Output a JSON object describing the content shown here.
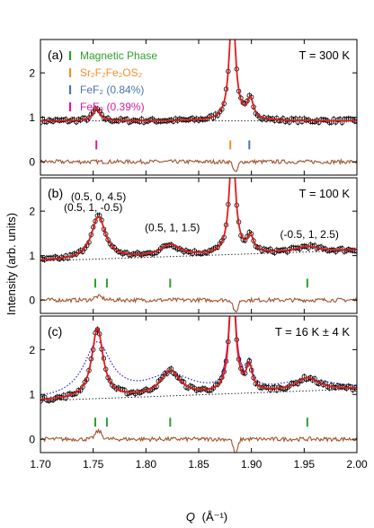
{
  "chart_data": {
    "type": "scatter",
    "xlabel_prefix": "Q",
    "xlabel_unit": "(Å⁻¹)",
    "ylabel": "Intensity (arb. units)",
    "xlim": [
      1.7,
      2.0
    ],
    "xticks": [
      "1.70",
      "1.75",
      "1.80",
      "1.85",
      "1.90",
      "1.95",
      "2.00"
    ],
    "yticks": [
      "0",
      "1",
      "2"
    ],
    "colors": {
      "data": "#000000",
      "fit": "#e31a1c",
      "residual": "#a0522d",
      "baseline": "#000000",
      "magnetic": "#2ca02c",
      "sr2f2fe2os2": "#f28e2b",
      "fef2": "#4c72b0",
      "fef3": "#d81b9c",
      "alt_fit_dotted": "#2323d6",
      "alt_fit_solid": "#a020a0"
    },
    "legend": [
      {
        "key": "magnetic",
        "label": "Magnetic Phase"
      },
      {
        "key": "sr2f2fe2os2",
        "label": "Sr₂F₂Fe₂OS₂"
      },
      {
        "key": "fef2",
        "label": "FeF₂ (0.84%)"
      },
      {
        "key": "fef3",
        "label": "FeF₃ (0.39%)"
      }
    ],
    "panels": [
      {
        "label": "(a)",
        "temperature": "T = 300 K",
        "ylim": [
          -0.3,
          2.75
        ],
        "baseline": [
          1.7,
          0.92,
          2.0,
          0.92
        ],
        "peaks": [
          {
            "c": 1.753,
            "h": 0.28,
            "w": 0.004
          },
          {
            "c": 1.882,
            "h": 2.6,
            "w": 0.0035
          },
          {
            "c": 1.899,
            "h": 0.45,
            "w": 0.0035
          }
        ],
        "residual_offset": 0.0,
        "residual_features": [
          {
            "c": 1.885,
            "a": -0.25,
            "w": 0.002
          }
        ],
        "ticks": [
          {
            "x": 1.753,
            "phase": "fef3"
          },
          {
            "x": 1.88,
            "phase": "sr2f2fe2os2"
          },
          {
            "x": 1.898,
            "phase": "fef2"
          }
        ],
        "annotations": [],
        "alt_fits": false
      },
      {
        "label": "(b)",
        "temperature": "T = 100 K",
        "ylim": [
          -0.3,
          2.75
        ],
        "baseline": [
          1.7,
          0.88,
          2.0,
          1.12
        ],
        "peaks": [
          {
            "c": 1.755,
            "h": 0.95,
            "w": 0.008
          },
          {
            "c": 1.823,
            "h": 0.25,
            "w": 0.011
          },
          {
            "c": 1.882,
            "h": 2.5,
            "w": 0.0035
          },
          {
            "c": 1.899,
            "h": 0.35,
            "w": 0.0035
          },
          {
            "c": 1.953,
            "h": 0.12,
            "w": 0.012
          }
        ],
        "residual_offset": 0.0,
        "residual_features": [
          {
            "c": 1.885,
            "a": -0.3,
            "w": 0.002
          },
          {
            "c": 1.755,
            "a": 0.08,
            "w": 0.004
          }
        ],
        "ticks": [
          {
            "x": 1.752,
            "phase": "magnetic"
          },
          {
            "x": 1.763,
            "phase": "magnetic"
          },
          {
            "x": 1.823,
            "phase": "magnetic"
          },
          {
            "x": 1.953,
            "phase": "magnetic"
          }
        ],
        "annotations": [
          {
            "text": "(0.5, 0, 4.5)",
            "x": 1.755,
            "y": 2.25
          },
          {
            "text": "(0.5, 1, -0.5)",
            "x": 1.75,
            "y": 2.0
          },
          {
            "text": "(0.5, 1, 1.5)",
            "x": 1.825,
            "y": 1.55
          },
          {
            "text": "(-0.5, 1, 2.5)",
            "x": 1.955,
            "y": 1.4
          }
        ],
        "alt_fits": false
      },
      {
        "label": "(c)",
        "temperature": "T = 16 K ± 4 K",
        "ylim": [
          -0.3,
          2.75
        ],
        "baseline": [
          1.7,
          0.86,
          2.0,
          1.12
        ],
        "peaks": [
          {
            "c": 1.754,
            "h": 1.55,
            "w": 0.0065
          },
          {
            "c": 1.823,
            "h": 0.55,
            "w": 0.011
          },
          {
            "c": 1.882,
            "h": 2.6,
            "w": 0.0035
          },
          {
            "c": 1.898,
            "h": 0.55,
            "w": 0.0035
          },
          {
            "c": 1.953,
            "h": 0.28,
            "w": 0.013
          }
        ],
        "residual_offset": 0.0,
        "residual_features": [
          {
            "c": 1.885,
            "a": -0.35,
            "w": 0.002
          },
          {
            "c": 1.755,
            "a": 0.18,
            "w": 0.003
          }
        ],
        "ticks": [
          {
            "x": 1.752,
            "phase": "magnetic"
          },
          {
            "x": 1.763,
            "phase": "magnetic"
          },
          {
            "x": 1.823,
            "phase": "magnetic"
          },
          {
            "x": 1.953,
            "phase": "magnetic"
          }
        ],
        "annotations": [],
        "alt_fits": true
      }
    ]
  }
}
